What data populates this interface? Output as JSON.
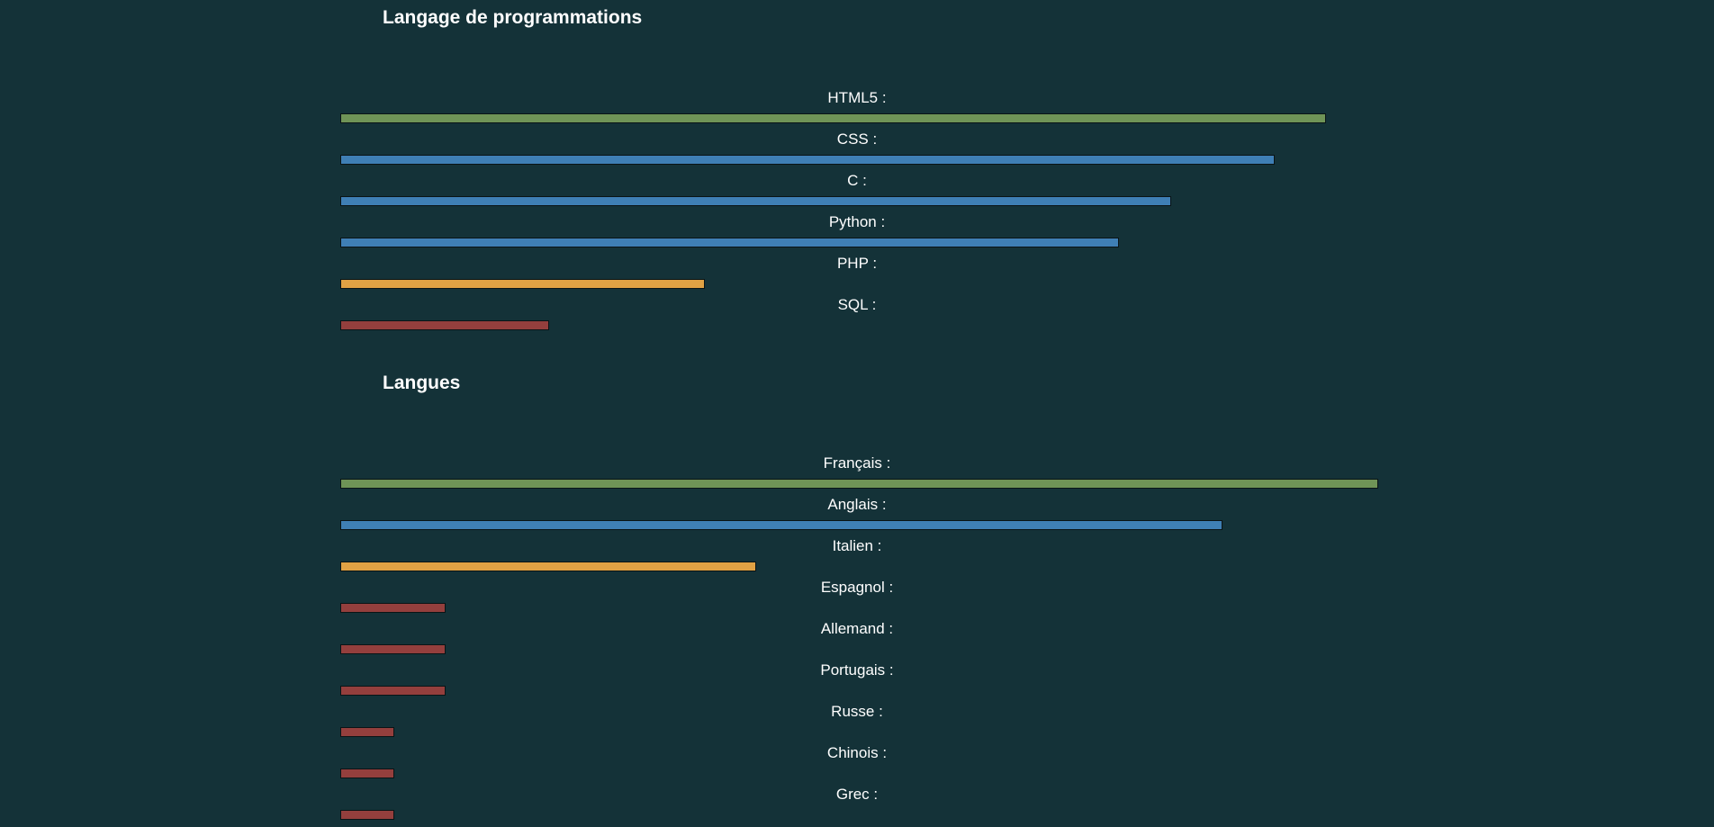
{
  "colors": {
    "background": "#143238",
    "green": "#6f9457",
    "blue": "#3f7fb5",
    "orange": "#e0a244",
    "red": "#943f3d"
  },
  "programming": {
    "title": "Langage de programmations",
    "skills": [
      {
        "label": "HTML5 :",
        "level_percent": 95,
        "color": "green"
      },
      {
        "label": "CSS :",
        "level_percent": 90,
        "color": "blue"
      },
      {
        "label": "C :",
        "level_percent": 80,
        "color": "blue"
      },
      {
        "label": "Python :",
        "level_percent": 75,
        "color": "blue"
      },
      {
        "label": "PHP :",
        "level_percent": 35,
        "color": "orange"
      },
      {
        "label": "SQL :",
        "level_percent": 20,
        "color": "red"
      }
    ]
  },
  "languages": {
    "title": "Langues",
    "skills": [
      {
        "label": "Français :",
        "level_percent": 100,
        "color": "green"
      },
      {
        "label": "Anglais :",
        "level_percent": 85,
        "color": "blue"
      },
      {
        "label": "Italien :",
        "level_percent": 40,
        "color": "orange"
      },
      {
        "label": "Espagnol :",
        "level_percent": 10,
        "color": "red"
      },
      {
        "label": "Allemand :",
        "level_percent": 10,
        "color": "red"
      },
      {
        "label": "Portugais :",
        "level_percent": 10,
        "color": "red"
      },
      {
        "label": "Russe :",
        "level_percent": 5,
        "color": "red"
      },
      {
        "label": "Chinois :",
        "level_percent": 5,
        "color": "red"
      },
      {
        "label": "Grec :",
        "level_percent": 5,
        "color": "red"
      }
    ]
  }
}
